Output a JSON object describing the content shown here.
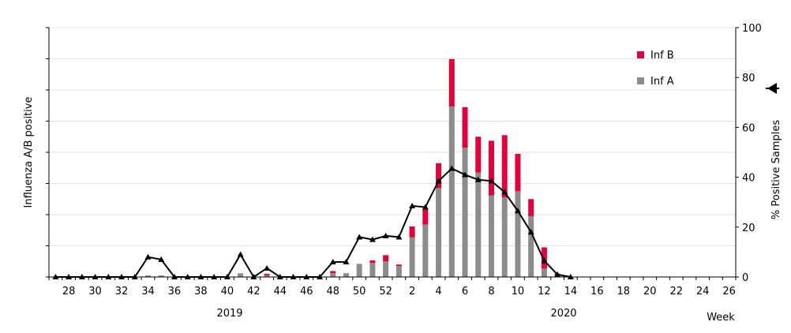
{
  "chart_data": {
    "type": "bar",
    "title": "",
    "ylabel_left": "Influenza A/B positive",
    "ylabel_right": "% Positive Samples",
    "xlabel": "Week",
    "year_labels": [
      "2019",
      "2020"
    ],
    "weeks": [
      27,
      28,
      29,
      30,
      31,
      32,
      33,
      34,
      35,
      36,
      37,
      38,
      39,
      40,
      41,
      42,
      43,
      44,
      45,
      46,
      47,
      48,
      49,
      50,
      51,
      52,
      1,
      2,
      3,
      4,
      5,
      6,
      7,
      8,
      9,
      10,
      11,
      12,
      13,
      14,
      15,
      16,
      17,
      18,
      19,
      20,
      21,
      22,
      23,
      24,
      25,
      26
    ],
    "right_ticks": [
      "0",
      "20",
      "40",
      "60",
      "80",
      "100"
    ],
    "right_ylim": [
      0,
      100
    ],
    "left_gridlines": 8,
    "stacked": true,
    "series": [
      {
        "name": "Inf A",
        "color": "#8c8c8c",
        "values": [
          0,
          0,
          0,
          0,
          0,
          0,
          0,
          0.05,
          0.05,
          0,
          0,
          0,
          0,
          0,
          0.12,
          0,
          0.05,
          0,
          0,
          0,
          0,
          0.12,
          0.12,
          0.42,
          0.45,
          0.5,
          0.35,
          1.27,
          1.68,
          2.85,
          5.47,
          4.15,
          3.35,
          2.62,
          2.55,
          2.75,
          1.95,
          0.27,
          0.05,
          0,
          0,
          0,
          0,
          0,
          0,
          0,
          0,
          0,
          0,
          0,
          0,
          0
        ]
      },
      {
        "name": "Inf B",
        "color": "#e4003a",
        "values": [
          0,
          0,
          0,
          0,
          0,
          0,
          0,
          0,
          0,
          0,
          0,
          0,
          0,
          0,
          0,
          0,
          0.05,
          0,
          0,
          0,
          0,
          0.07,
          0,
          0,
          0.08,
          0.2,
          0.05,
          0.35,
          0.5,
          0.8,
          1.52,
          1.3,
          1.15,
          1.75,
          2.0,
          1.2,
          0.55,
          0.68,
          0.05,
          0,
          0,
          0,
          0,
          0,
          0,
          0,
          0,
          0,
          0,
          0,
          0,
          0
        ]
      }
    ],
    "line_series": {
      "marker": "triangle",
      "color": "#000000",
      "axis": "right",
      "values": [
        0,
        0,
        0,
        0,
        0,
        0,
        0,
        8,
        7,
        0,
        0,
        0,
        0,
        0,
        9,
        0,
        3.5,
        0,
        0,
        0,
        0,
        6,
        6,
        16,
        15,
        16.5,
        16,
        28.5,
        28,
        38.5,
        43.5,
        41,
        39,
        38.5,
        34,
        26.5,
        18,
        6.5,
        1,
        0,
        null,
        null,
        null,
        null,
        null,
        null,
        null,
        null,
        null,
        null,
        null,
        null
      ]
    },
    "legend": [
      "Inf B",
      "Inf A"
    ],
    "legend_position": "top-right"
  }
}
